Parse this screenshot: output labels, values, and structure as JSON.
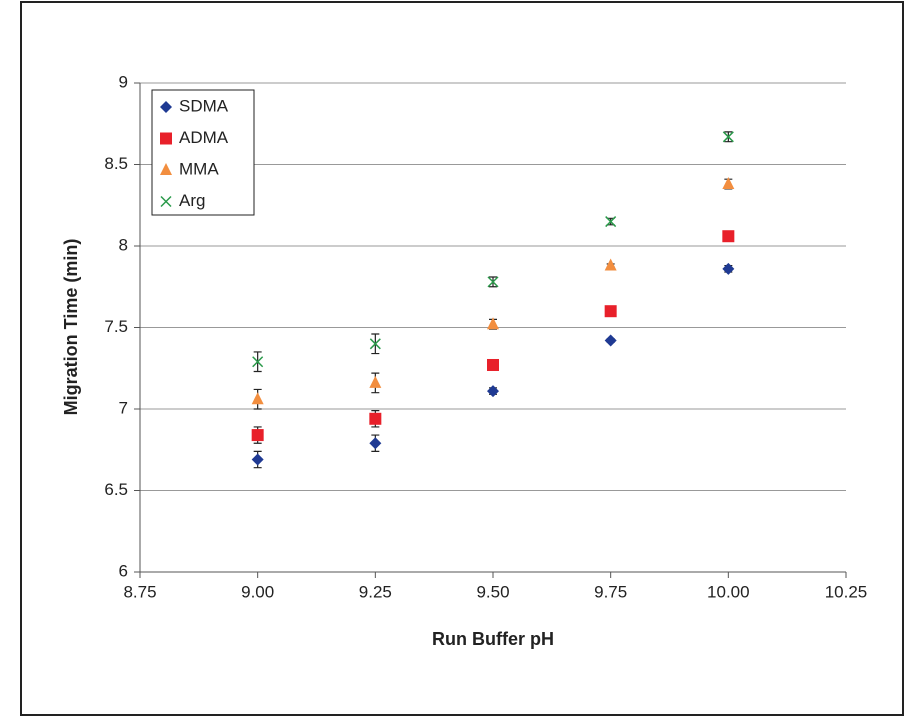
{
  "chart_data": {
    "type": "scatter",
    "x_label": "Run Buffer pH",
    "y_label": "Migration Time (min)",
    "x": [
      9.0,
      9.25,
      9.5,
      9.75,
      10.0
    ],
    "series": [
      {
        "name": "SDMA",
        "color": "#1f3a93",
        "marker": "diamond",
        "values": [
          6.69,
          6.79,
          7.11,
          7.42,
          7.86
        ],
        "errors": [
          0.05,
          0.05,
          0.02,
          0.01,
          0.02
        ]
      },
      {
        "name": "ADMA",
        "color": "#e8202a",
        "marker": "square",
        "values": [
          6.84,
          6.94,
          7.27,
          7.6,
          8.06
        ],
        "errors": [
          0.05,
          0.05,
          0.02,
          0.01,
          0.02
        ]
      },
      {
        "name": "MMA",
        "color": "#f28e3f",
        "marker": "triangle",
        "values": [
          7.06,
          7.16,
          7.52,
          7.88,
          8.38
        ],
        "errors": [
          0.06,
          0.06,
          0.03,
          0.01,
          0.03
        ]
      },
      {
        "name": "Arg",
        "color": "#2a9a4a",
        "marker": "x",
        "values": [
          7.29,
          7.4,
          7.78,
          8.15,
          8.67
        ],
        "errors": [
          0.06,
          0.06,
          0.03,
          0.02,
          0.03
        ]
      }
    ],
    "xlim": [
      8.75,
      10.25
    ],
    "xticks": [
      8.75,
      {
        "value": 9.0,
        "label": "9.00"
      },
      9.25,
      {
        "value": 9.5,
        "label": "9.50"
      },
      9.75,
      {
        "value": 10.0,
        "label": "10.00"
      },
      10.25
    ],
    "ylim": [
      6,
      9
    ],
    "yticks": [
      6,
      6.5,
      7,
      7.5,
      8,
      8.5,
      9
    ],
    "grid": true,
    "legend": "upper left"
  }
}
